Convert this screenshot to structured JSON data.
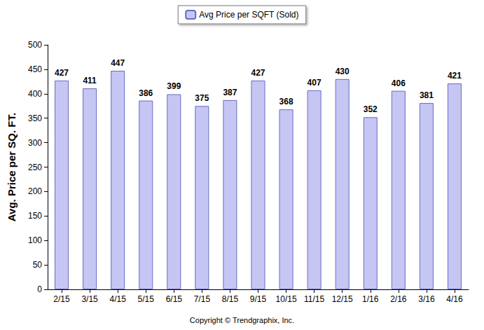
{
  "chart_data": {
    "type": "bar",
    "y_label": "Avg. Price per SQ. FT.",
    "annotations": [
      "Copyright © Trendgraphix, Inc."
    ],
    "categories": [
      "2/15",
      "3/15",
      "4/15",
      "5/15",
      "6/15",
      "7/15",
      "8/15",
      "9/15",
      "10/15",
      "11/15",
      "12/15",
      "1/16",
      "2/16",
      "3/16",
      "4/16"
    ],
    "series": [
      {
        "name": "Avg Price per SQFT (Sold)",
        "color": "#c6c6f5",
        "values": [
          427,
          411,
          447,
          386,
          399,
          375,
          387,
          427,
          368,
          407,
          430,
          352,
          406,
          381,
          421
        ]
      }
    ],
    "ylim": [
      0,
      500
    ],
    "yticks": [
      0,
      50,
      100,
      150,
      200,
      250,
      300,
      350,
      400,
      450,
      500
    ],
    "grid": false,
    "legend": "top",
    "data_labels": true
  }
}
